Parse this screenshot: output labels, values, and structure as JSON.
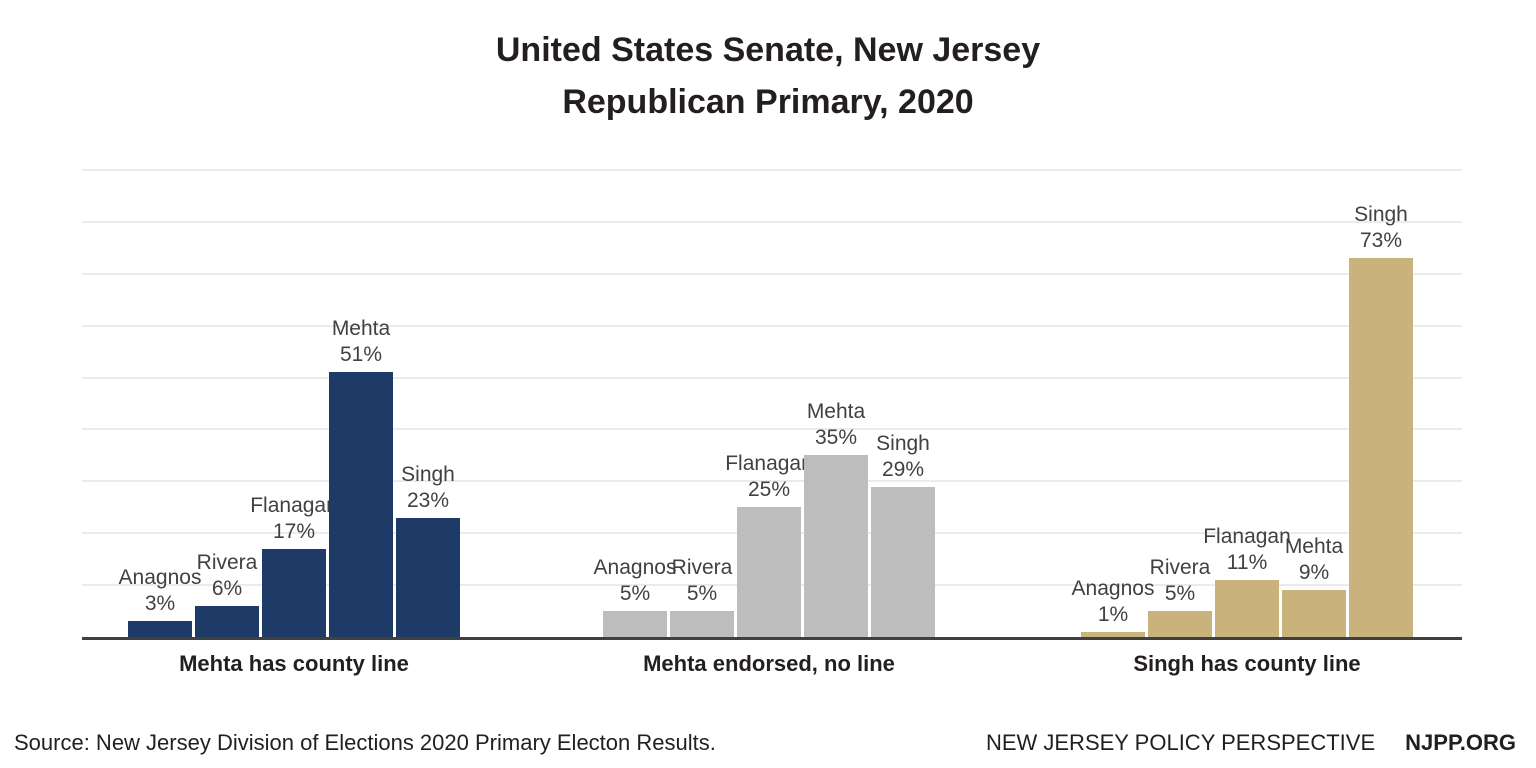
{
  "title": {
    "line1": "United States Senate, New Jersey",
    "line2": "Republican Primary, 2020"
  },
  "chart_data": {
    "type": "bar",
    "title": "United States Senate, New Jersey Republican Primary, 2020",
    "categories": [
      "Anagnos",
      "Rivera",
      "Flanagan",
      "Mehta",
      "Singh"
    ],
    "series": [
      {
        "name": "Mehta has county line",
        "color": "#1e3a66",
        "values": [
          3,
          6,
          17,
          51,
          23
        ]
      },
      {
        "name": "Mehta endorsed, no line",
        "color": "#bdbdbd",
        "values": [
          5,
          5,
          25,
          35,
          29
        ]
      },
      {
        "name": "Singh has county line",
        "color": "#c9b27b",
        "values": [
          1,
          5,
          11,
          9,
          73
        ]
      }
    ],
    "value_suffix": "%",
    "xlabel": "",
    "ylabel": "",
    "ylim": [
      0,
      90
    ],
    "grid_step": 10,
    "grid": true,
    "legend_position": "none",
    "data_labels": "candidate name and percent above each bar",
    "gridline_color": "#ebebeb",
    "axis_color": "#404040"
  },
  "footer": {
    "source": "Source: New Jersey Division of Elections 2020 Primary Electon Results.",
    "org": "NEW JERSEY POLICY PERSPECTIVE",
    "site": "NJPP.ORG"
  }
}
